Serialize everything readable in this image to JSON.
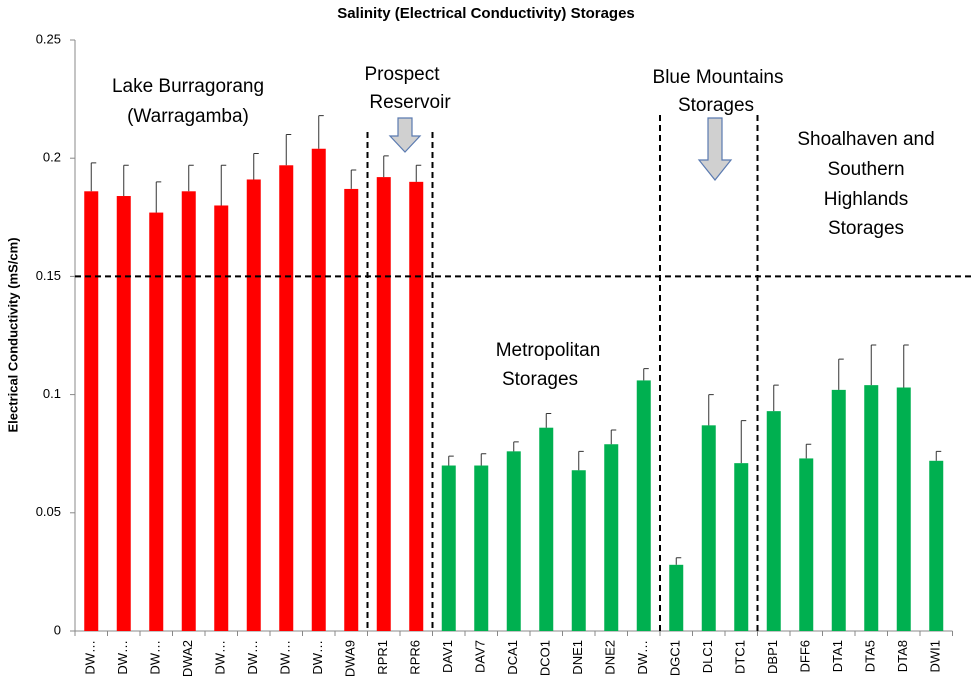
{
  "chart_data": {
    "type": "bar",
    "title": "Salinity (Electrical Conductivity) Storages",
    "y_label": "Electrical Conductivity (mS/cm)",
    "categories": [
      "DW…",
      "DW…",
      "DW…",
      "DWA2",
      "DW…",
      "DW…",
      "DW…",
      "DW…",
      "DWA9",
      "RPR1",
      "RPR6",
      "DAV1",
      "DAV7",
      "DCA1",
      "DCO1",
      "DNE1",
      "DNE2",
      "DW…",
      "DGC1",
      "DLC1",
      "DTC1",
      "DBP1",
      "DFF6",
      "DTA1",
      "DTA5",
      "DTA8",
      "DWI1"
    ],
    "values": [
      0.186,
      0.184,
      0.177,
      0.186,
      0.18,
      0.191,
      0.197,
      0.204,
      0.187,
      0.192,
      0.19,
      0.07,
      0.07,
      0.076,
      0.086,
      0.068,
      0.079,
      0.106,
      0.028,
      0.087,
      0.071,
      0.093,
      0.073,
      0.102,
      0.104,
      0.103,
      0.072
    ],
    "errors": [
      0.012,
      0.013,
      0.013,
      0.011,
      0.017,
      0.011,
      0.013,
      0.014,
      0.008,
      0.009,
      0.007,
      0.004,
      0.005,
      0.004,
      0.006,
      0.008,
      0.006,
      0.005,
      0.003,
      0.013,
      0.018,
      0.011,
      0.006,
      0.013,
      0.017,
      0.018,
      0.004
    ],
    "colors": [
      "#ff0000",
      "#ff0000",
      "#ff0000",
      "#ff0000",
      "#ff0000",
      "#ff0000",
      "#ff0000",
      "#ff0000",
      "#ff0000",
      "#ff0000",
      "#ff0000",
      "#00b050",
      "#00b050",
      "#00b050",
      "#00b050",
      "#00b050",
      "#00b050",
      "#00b050",
      "#00b050",
      "#00b050",
      "#00b050",
      "#00b050",
      "#00b050",
      "#00b050",
      "#00b050",
      "#00b050",
      "#00b050"
    ],
    "ylim": [
      0,
      0.25
    ],
    "yticks": [
      0,
      0.05,
      0.1,
      0.15,
      0.2,
      0.25
    ],
    "grid": false,
    "reference_line": 0.15,
    "annotations": [
      "Lake Burragorang",
      "(Warragamba)",
      "Prospect",
      "Reservoir",
      "Blue Mountains",
      "Storages",
      "Shoalhaven and",
      "Southern",
      "Highlands",
      "Storages",
      "Metropolitan",
      "Storages"
    ]
  }
}
